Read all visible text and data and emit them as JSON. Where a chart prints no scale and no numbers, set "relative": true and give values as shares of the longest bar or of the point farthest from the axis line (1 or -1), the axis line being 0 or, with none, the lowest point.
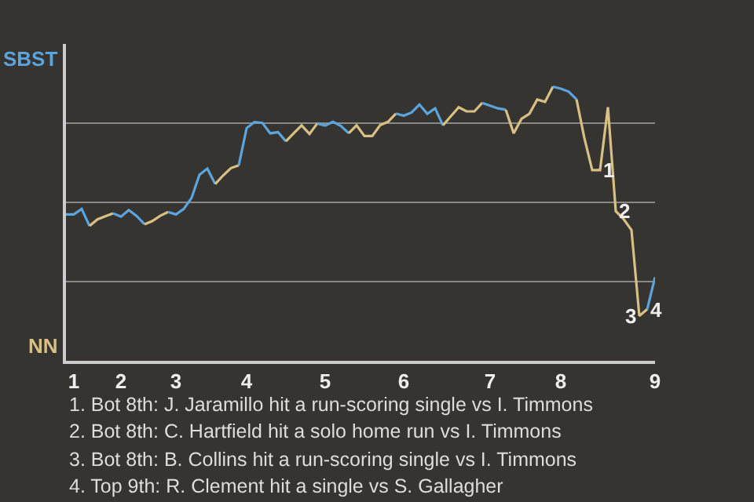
{
  "chart_data": {
    "type": "line",
    "relative": true,
    "categories": [
      null,
      "1",
      null,
      null,
      null,
      null,
      null,
      "2",
      null,
      null,
      null,
      null,
      null,
      null,
      "3",
      null,
      null,
      null,
      null,
      null,
      null,
      null,
      null,
      "4",
      null,
      null,
      null,
      null,
      null,
      null,
      null,
      null,
      null,
      "5",
      null,
      null,
      null,
      null,
      null,
      null,
      null,
      null,
      null,
      "6",
      null,
      null,
      null,
      null,
      null,
      null,
      null,
      null,
      null,
      null,
      "7",
      null,
      null,
      null,
      null,
      null,
      null,
      null,
      null,
      "8",
      null,
      null,
      null,
      null,
      null,
      null,
      null,
      null,
      null,
      null,
      null,
      "9"
    ],
    "grid": "y",
    "marker": "none",
    "line_style": "solid",
    "series": [
      {
        "color": "#5ba4dc",
        "values": [
          0.534,
          0.534,
          0.554,
          0.492,
          null,
          null,
          null,
          null,
          null,
          null,
          null,
          null,
          null,
          null,
          null,
          null,
          null,
          null,
          null,
          null,
          null,
          null,
          null,
          null,
          null,
          null,
          null,
          null,
          null,
          null,
          null,
          null,
          null,
          null,
          null,
          null,
          null,
          null,
          null,
          null,
          null,
          null,
          null,
          null,
          null,
          null,
          null,
          null,
          null,
          null,
          null,
          null,
          null,
          null,
          null,
          null,
          null,
          null,
          null,
          null,
          null,
          null,
          null,
          null,
          null,
          null,
          null,
          null,
          null,
          null,
          null,
          null,
          null,
          null,
          null,
          null
        ]
      },
      {
        "color": "#d8bf84",
        "values": [
          null,
          null,
          null,
          0.492,
          0.516,
          0.527,
          0.538,
          null,
          null,
          null,
          null,
          null,
          null,
          null,
          null,
          null,
          null,
          null,
          null,
          null,
          null,
          null,
          null,
          null,
          null,
          null,
          null,
          null,
          null,
          null,
          null,
          null,
          null,
          null,
          null,
          null,
          null,
          null,
          null,
          null,
          null,
          null,
          null,
          null,
          null,
          null,
          null,
          null,
          null,
          null,
          null,
          null,
          null,
          null,
          null,
          null,
          null,
          null,
          null,
          null,
          null,
          null,
          null,
          null,
          null,
          null,
          null,
          null,
          null,
          null,
          null,
          null,
          null,
          null,
          null,
          null
        ]
      },
      {
        "color": "#5ba4dc",
        "values": [
          null,
          null,
          null,
          null,
          null,
          null,
          0.538,
          0.526,
          0.55,
          0.528,
          0.498,
          null,
          null,
          null,
          null,
          null,
          null,
          null,
          null,
          null,
          null,
          null,
          null,
          null,
          null,
          null,
          null,
          null,
          null,
          null,
          null,
          null,
          null,
          null,
          null,
          null,
          null,
          null,
          null,
          null,
          null,
          null,
          null,
          null,
          null,
          null,
          null,
          null,
          null,
          null,
          null,
          null,
          null,
          null,
          null,
          null,
          null,
          null,
          null,
          null,
          null,
          null,
          null,
          null,
          null,
          null,
          null,
          null,
          null,
          null,
          null,
          null,
          null,
          null,
          null,
          null
        ]
      },
      {
        "color": "#d8bf84",
        "values": [
          null,
          null,
          null,
          null,
          null,
          null,
          null,
          null,
          null,
          null,
          0.498,
          0.51,
          0.529,
          0.543,
          null,
          null,
          null,
          null,
          null,
          null,
          null,
          null,
          null,
          null,
          null,
          null,
          null,
          null,
          null,
          null,
          null,
          null,
          null,
          null,
          null,
          null,
          null,
          null,
          null,
          null,
          null,
          null,
          null,
          null,
          null,
          null,
          null,
          null,
          null,
          null,
          null,
          null,
          null,
          null,
          null,
          null,
          null,
          null,
          null,
          null,
          null,
          null,
          null,
          null,
          null,
          null,
          null,
          null,
          null,
          null,
          null,
          null,
          null,
          null,
          null,
          null
        ]
      },
      {
        "color": "#5ba4dc",
        "values": [
          null,
          null,
          null,
          null,
          null,
          null,
          null,
          null,
          null,
          null,
          null,
          null,
          null,
          0.543,
          0.534,
          0.554,
          0.595,
          0.679,
          0.701,
          0.645,
          null,
          null,
          null,
          null,
          null,
          null,
          null,
          null,
          null,
          null,
          null,
          null,
          null,
          null,
          null,
          null,
          null,
          null,
          null,
          null,
          null,
          null,
          null,
          null,
          null,
          null,
          null,
          null,
          null,
          null,
          null,
          null,
          null,
          null,
          null,
          null,
          null,
          null,
          null,
          null,
          null,
          null,
          null,
          null,
          null,
          null,
          null,
          null,
          null,
          null,
          null,
          null,
          null,
          null,
          null,
          null
        ]
      },
      {
        "color": "#d8bf84",
        "values": [
          null,
          null,
          null,
          null,
          null,
          null,
          null,
          null,
          null,
          null,
          null,
          null,
          null,
          null,
          null,
          null,
          null,
          null,
          null,
          0.645,
          0.676,
          0.703,
          0.713,
          null,
          null,
          null,
          null,
          null,
          null,
          null,
          null,
          null,
          null,
          null,
          null,
          null,
          null,
          null,
          null,
          null,
          null,
          null,
          null,
          null,
          null,
          null,
          null,
          null,
          null,
          null,
          null,
          null,
          null,
          null,
          null,
          null,
          null,
          null,
          null,
          null,
          null,
          null,
          null,
          null,
          null,
          null,
          null,
          null,
          null,
          null,
          null,
          null,
          null,
          null,
          null,
          null
        ]
      },
      {
        "color": "#5ba4dc",
        "values": [
          null,
          null,
          null,
          null,
          null,
          null,
          null,
          null,
          null,
          null,
          null,
          null,
          null,
          null,
          null,
          null,
          null,
          null,
          null,
          null,
          null,
          null,
          0.713,
          0.849,
          0.871,
          0.868,
          0.83,
          0.834,
          0.801,
          null,
          null,
          null,
          null,
          null,
          null,
          null,
          null,
          null,
          null,
          null,
          null,
          null,
          null,
          null,
          null,
          null,
          null,
          null,
          null,
          null,
          null,
          null,
          null,
          null,
          null,
          null,
          null,
          null,
          null,
          null,
          null,
          null,
          null,
          null,
          null,
          null,
          null,
          null,
          null,
          null,
          null,
          null,
          null,
          null,
          null,
          null
        ]
      },
      {
        "color": "#d8bf84",
        "values": [
          null,
          null,
          null,
          null,
          null,
          null,
          null,
          null,
          null,
          null,
          null,
          null,
          null,
          null,
          null,
          null,
          null,
          null,
          null,
          null,
          null,
          null,
          null,
          null,
          null,
          null,
          null,
          null,
          0.801,
          0.83,
          0.859,
          0.828,
          0.866,
          null,
          null,
          null,
          null,
          null,
          null,
          null,
          null,
          null,
          null,
          null,
          null,
          null,
          null,
          null,
          null,
          null,
          null,
          null,
          null,
          null,
          null,
          null,
          null,
          null,
          null,
          null,
          null,
          null,
          null,
          null,
          null,
          null,
          null,
          null,
          null,
          null,
          null,
          null,
          null,
          null,
          null,
          null
        ]
      },
      {
        "color": "#5ba4dc",
        "values": [
          null,
          null,
          null,
          null,
          null,
          null,
          null,
          null,
          null,
          null,
          null,
          null,
          null,
          null,
          null,
          null,
          null,
          null,
          null,
          null,
          null,
          null,
          null,
          null,
          null,
          null,
          null,
          null,
          null,
          null,
          null,
          null,
          0.866,
          0.858,
          0.872,
          0.857,
          0.83,
          null,
          null,
          null,
          null,
          null,
          null,
          null,
          null,
          null,
          null,
          null,
          null,
          null,
          null,
          null,
          null,
          null,
          null,
          null,
          null,
          null,
          null,
          null,
          null,
          null,
          null,
          null,
          null,
          null,
          null,
          null,
          null,
          null,
          null,
          null,
          null,
          null,
          null,
          null
        ]
      },
      {
        "color": "#d8bf84",
        "values": [
          null,
          null,
          null,
          null,
          null,
          null,
          null,
          null,
          null,
          null,
          null,
          null,
          null,
          null,
          null,
          null,
          null,
          null,
          null,
          null,
          null,
          null,
          null,
          null,
          null,
          null,
          null,
          null,
          null,
          null,
          null,
          null,
          null,
          null,
          null,
          null,
          0.83,
          0.859,
          0.82,
          0.82,
          0.86,
          0.872,
          0.902,
          null,
          null,
          null,
          null,
          null,
          null,
          null,
          null,
          null,
          null,
          null,
          null,
          null,
          null,
          null,
          null,
          null,
          null,
          null,
          null,
          null,
          null,
          null,
          null,
          null,
          null,
          null,
          null,
          null,
          null,
          null,
          null,
          null
        ]
      },
      {
        "color": "#5ba4dc",
        "values": [
          null,
          null,
          null,
          null,
          null,
          null,
          null,
          null,
          null,
          null,
          null,
          null,
          null,
          null,
          null,
          null,
          null,
          null,
          null,
          null,
          null,
          null,
          null,
          null,
          null,
          null,
          null,
          null,
          null,
          null,
          null,
          null,
          null,
          null,
          null,
          null,
          null,
          null,
          null,
          null,
          null,
          null,
          0.902,
          0.894,
          0.906,
          0.935,
          0.901,
          0.921,
          0.859,
          null,
          null,
          null,
          null,
          null,
          null,
          null,
          null,
          null,
          null,
          null,
          null,
          null,
          null,
          null,
          null,
          null,
          null,
          null,
          null,
          null,
          null,
          null,
          null,
          null,
          null,
          null
        ]
      },
      {
        "color": "#d8bf84",
        "values": [
          null,
          null,
          null,
          null,
          null,
          null,
          null,
          null,
          null,
          null,
          null,
          null,
          null,
          null,
          null,
          null,
          null,
          null,
          null,
          null,
          null,
          null,
          null,
          null,
          null,
          null,
          null,
          null,
          null,
          null,
          null,
          null,
          null,
          null,
          null,
          null,
          null,
          null,
          null,
          null,
          null,
          null,
          null,
          null,
          null,
          null,
          null,
          null,
          0.859,
          0.892,
          0.925,
          0.91,
          0.91,
          0.941,
          null,
          null,
          null,
          null,
          null,
          null,
          null,
          null,
          null,
          null,
          null,
          null,
          null,
          null,
          null,
          null,
          null,
          null,
          null,
          null,
          null,
          null
        ]
      },
      {
        "color": "#5ba4dc",
        "values": [
          null,
          null,
          null,
          null,
          null,
          null,
          null,
          null,
          null,
          null,
          null,
          null,
          null,
          null,
          null,
          null,
          null,
          null,
          null,
          null,
          null,
          null,
          null,
          null,
          null,
          null,
          null,
          null,
          null,
          null,
          null,
          null,
          null,
          null,
          null,
          null,
          null,
          null,
          null,
          null,
          null,
          null,
          null,
          null,
          null,
          null,
          null,
          null,
          null,
          null,
          null,
          null,
          null,
          0.941,
          0.931,
          0.921,
          0.916,
          null,
          null,
          null,
          null,
          null,
          null,
          null,
          null,
          null,
          null,
          null,
          null,
          null,
          null,
          null,
          null,
          null,
          null,
          null
        ]
      },
      {
        "color": "#d8bf84",
        "values": [
          null,
          null,
          null,
          null,
          null,
          null,
          null,
          null,
          null,
          null,
          null,
          null,
          null,
          null,
          null,
          null,
          null,
          null,
          null,
          null,
          null,
          null,
          null,
          null,
          null,
          null,
          null,
          null,
          null,
          null,
          null,
          null,
          null,
          null,
          null,
          null,
          null,
          null,
          null,
          null,
          null,
          null,
          null,
          null,
          null,
          null,
          null,
          null,
          null,
          null,
          null,
          null,
          null,
          null,
          null,
          null,
          0.916,
          0.83,
          0.883,
          0.901,
          0.953,
          0.945,
          1,
          null,
          null,
          null,
          null,
          null,
          null,
          null,
          null,
          null,
          null,
          null,
          null,
          null
        ]
      },
      {
        "color": "#5ba4dc",
        "values": [
          null,
          null,
          null,
          null,
          null,
          null,
          null,
          null,
          null,
          null,
          null,
          null,
          null,
          null,
          null,
          null,
          null,
          null,
          null,
          null,
          null,
          null,
          null,
          null,
          null,
          null,
          null,
          null,
          null,
          null,
          null,
          null,
          null,
          null,
          null,
          null,
          null,
          null,
          null,
          null,
          null,
          null,
          null,
          null,
          null,
          null,
          null,
          null,
          null,
          null,
          null,
          null,
          null,
          null,
          null,
          null,
          null,
          null,
          null,
          null,
          null,
          null,
          1,
          0.993,
          0.982,
          0.954,
          null,
          null,
          null,
          null,
          null,
          null,
          null,
          null,
          null,
          null
        ]
      },
      {
        "color": "#d8bf84",
        "values": [
          null,
          null,
          null,
          null,
          null,
          null,
          null,
          null,
          null,
          null,
          null,
          null,
          null,
          null,
          null,
          null,
          null,
          null,
          null,
          null,
          null,
          null,
          null,
          null,
          null,
          null,
          null,
          null,
          null,
          null,
          null,
          null,
          null,
          null,
          null,
          null,
          null,
          null,
          null,
          null,
          null,
          null,
          null,
          null,
          null,
          null,
          null,
          null,
          null,
          null,
          null,
          null,
          null,
          null,
          null,
          null,
          null,
          null,
          null,
          null,
          null,
          null,
          null,
          null,
          null,
          0.954,
          0.813,
          0.696,
          0.696,
          0.925,
          0.546,
          0.517,
          0.477,
          0.164,
          0.188,
          null
        ]
      },
      {
        "color": "#5ba4dc",
        "values": [
          null,
          null,
          null,
          null,
          null,
          null,
          null,
          null,
          null,
          null,
          null,
          null,
          null,
          null,
          null,
          null,
          null,
          null,
          null,
          null,
          null,
          null,
          null,
          null,
          null,
          null,
          null,
          null,
          null,
          null,
          null,
          null,
          null,
          null,
          null,
          null,
          null,
          null,
          null,
          null,
          null,
          null,
          null,
          null,
          null,
          null,
          null,
          null,
          null,
          null,
          null,
          null,
          null,
          null,
          null,
          null,
          null,
          null,
          null,
          null,
          null,
          null,
          null,
          null,
          null,
          null,
          null,
          null,
          null,
          null,
          null,
          null,
          null,
          null,
          0.188,
          0.305
        ]
      }
    ],
    "annotations": [
      {
        "text": "1",
        "y": 0.696
      },
      {
        "text": "2",
        "y": 0.546
      },
      {
        "text": "3",
        "y": 0.164
      },
      {
        "text": "4",
        "y": 0.188
      },
      "SBST",
      "NN",
      "1. Bot 8th: J. Jaramillo hit a run-scoring single vs I. Timmons",
      "2. Bot 8th: C. Hartfield hit a solo home run vs I. Timmons",
      "3. Bot 8th: B. Collins hit a run-scoring single vs I. Timmons",
      "4. Top 9th: R. Clement hit a single vs S. Gallagher"
    ]
  }
}
